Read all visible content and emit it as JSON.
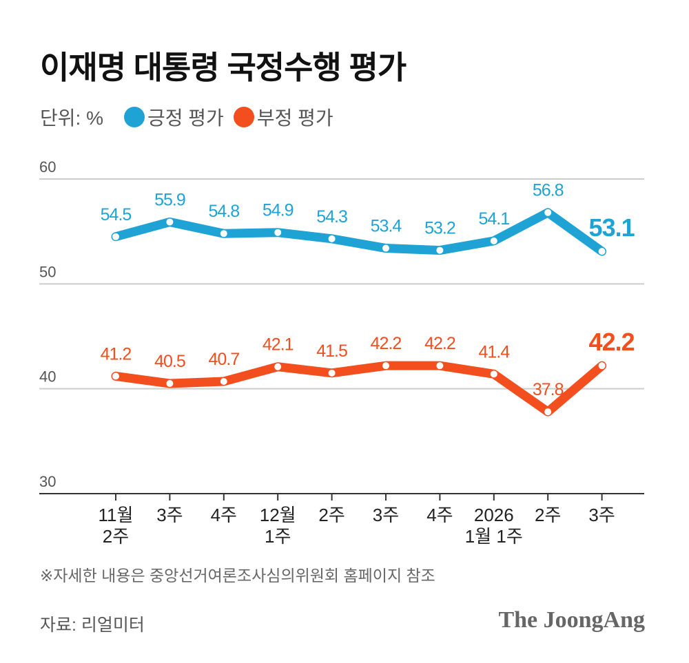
{
  "title": "이재명 대통령 국정수행 평가",
  "unit_label": "단위: %",
  "note": "※자세한 내용은 중앙선거여론조사심의위원회 홈페이지 참조",
  "source": "자료: 리얼미터",
  "logo_text": "The JoongAng",
  "chart_data": {
    "type": "line",
    "title": "이재명 대통령 국정수행 평가",
    "xlabel": "",
    "ylabel": "",
    "ylim": [
      30,
      60
    ],
    "yticks": [
      60,
      50,
      40,
      30
    ],
    "grid": true,
    "legend_position": "top-left",
    "categories": [
      [
        "11월",
        "2주"
      ],
      [
        "3주"
      ],
      [
        "4주"
      ],
      [
        "12월",
        "1주"
      ],
      [
        "2주"
      ],
      [
        "3주"
      ],
      [
        "4주"
      ],
      [
        "2026",
        "1월 1주"
      ],
      [
        "2주"
      ],
      [
        "3주"
      ]
    ],
    "series": [
      {
        "name": "긍정 평가",
        "color": "#1fa3d4",
        "values": [
          54.5,
          55.9,
          54.8,
          54.9,
          54.3,
          53.4,
          53.2,
          54.1,
          56.8,
          53.1
        ]
      },
      {
        "name": "부정 평가",
        "color": "#f24e1e",
        "values": [
          41.2,
          40.5,
          40.7,
          42.1,
          41.5,
          42.2,
          42.2,
          41.4,
          37.8,
          42.2
        ]
      }
    ]
  }
}
